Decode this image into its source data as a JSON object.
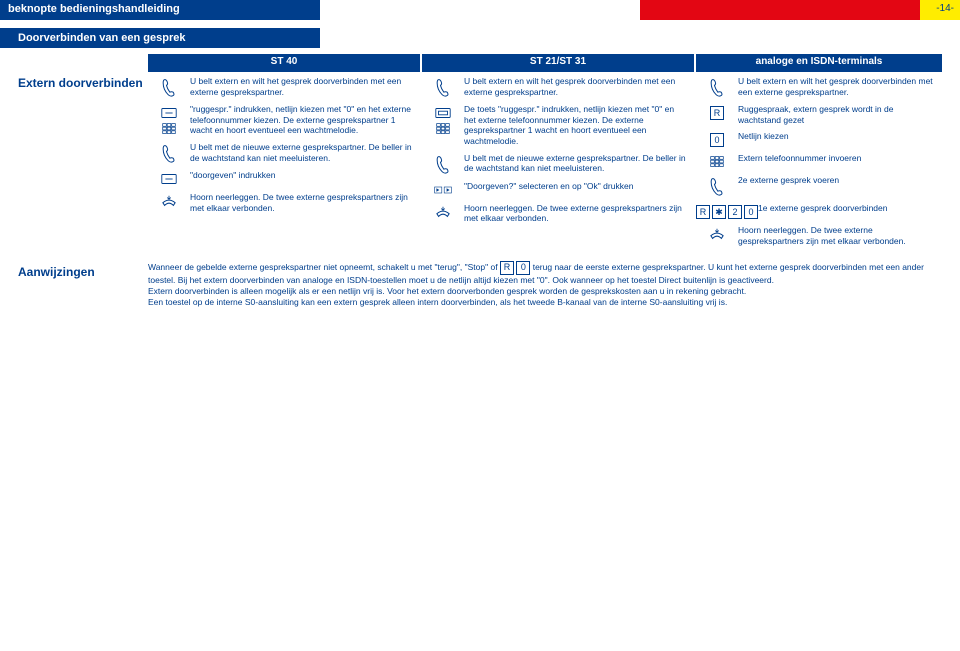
{
  "colors": {
    "blue": "#003e8c",
    "red": "#e30613",
    "yellow": "#ffed00",
    "white": "#ffffff"
  },
  "topbar": {
    "title": "beknopte bedieningshandleiding",
    "pagenum": "-14-"
  },
  "subtitle": "Doorverbinden van een gesprek",
  "left_heading": "Extern doorverbinden",
  "columns": {
    "st40": "ST 40",
    "st21": "ST 21/ST 31",
    "analog": "analoge en ISDN-terminals"
  },
  "col1": {
    "s1": "U belt extern en wilt het gesprek doorverbinden met een externe gesprekspartner.",
    "s2": "\"ruggespr.\" indrukken, netlijn kiezen met \"0\" en het externe telefoonnummer kiezen. De externe gesprekspartner 1 wacht en hoort eventueel een wachtmelodie.",
    "s3": "U belt met de nieuwe externe gesprekspartner. De beller in de wachtstand kan niet meeluisteren.",
    "s4": "\"doorgeven\" indrukken",
    "s5": "Hoorn neerleggen. De twee externe gesprekspartners zijn met elkaar verbonden."
  },
  "col2": {
    "s1": "U belt extern en wilt het gesprek doorverbinden met een externe gesprekspartner.",
    "s2": "De toets \"ruggespr.\" indrukken, netlijn kiezen met \"0\" en het externe telefoonnummer kiezen. De externe gesprekspartner 1 wacht en hoort eventueel een wachtmelodie.",
    "s3": "U belt met de nieuwe externe gesprekspartner. De beller in de wachtstand kan niet meeluisteren.",
    "s4": "\"Doorgeven?\" selecteren en op \"Ok\" drukken",
    "s5": "Hoorn neerleggen. De twee externe gesprekspartners zijn met elkaar verbonden."
  },
  "col3": {
    "s1": "U belt extern en wilt het gesprek doorverbinden met een externe gesprekspartner.",
    "s2a": "Ruggespraak, extern gesprek wordt in de wachtstand gezet",
    "s2b": "Netlijn kiezen",
    "s2c": "Extern telefoonnummer invoeren",
    "s3": "2e externe gesprek voeren",
    "s4": "1e externe gesprek doorverbinden",
    "s5": "Hoorn neerleggen. De twee externe gesprekspartners zijn met elkaar verbonden."
  },
  "keys": {
    "R": "R",
    "zero": "0",
    "star": "✱",
    "two": "2"
  },
  "notes": {
    "heading": "Aanwijzingen",
    "body": "Wanneer de gebelde externe gesprekspartner niet opneemt, schakelt u met \"terug\", \"Stop\" of R 0 terug naar de eerste externe gesprekspartner. U kunt het externe gesprek doorverbinden met een ander toestel. Bij het extern doorverbinden van analoge en ISDN-toestellen moet u de netlijn altijd kiezen met \"0\". Ook wanneer op het toestel Direct buitenlijn is geactiveerd.\nExtern doorverbinden is alleen mogelijk als er een netlijn vrij is. Voor het extern doorverbonden gesprek worden de gesprekskosten aan u in rekening gebracht.\nEen toestel op de interne S0-aansluiting kan een extern gesprek alleen intern doorverbinden, als het tweede B-kanaal van de interne S0-aansluiting vrij is."
  }
}
